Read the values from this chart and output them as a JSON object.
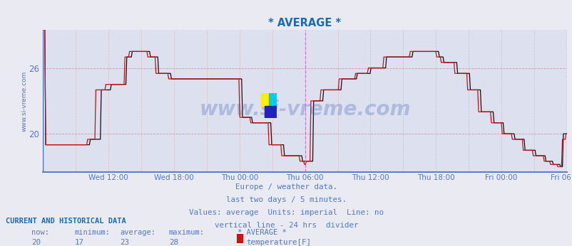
{
  "title": "* AVERAGE *",
  "title_color": "#1a6bb5",
  "bg_color": "#eaeaf2",
  "plot_bg_color": "#dde0ee",
  "line_color_red": "#cc1111",
  "line_color_black": "#111111",
  "axis_label_color": "#5577cc",
  "grid_color_minor": "#ddaaaa",
  "grid_color_major": "#cc8888",
  "ylabel_text": "www.si-vreme.com",
  "xlabel_ticks": [
    "Wed 12:00",
    "Wed 18:00",
    "Thu 00:00",
    "Thu 06:00",
    "Thu 12:00",
    "Thu 18:00",
    "Fri 00:00",
    "Fri 06:00"
  ],
  "ylim": [
    16.5,
    29.5
  ],
  "yticks": [
    20,
    26
  ],
  "footer_lines": [
    "Europe / weather data.",
    "last two days / 5 minutes.",
    "Values: average  Units: imperial  Line: no",
    "vertical line - 24 hrs  divider"
  ],
  "footer_color": "#5577cc",
  "current_label": "CURRENT AND HISTORICAL DATA",
  "stats_labels": [
    "now:",
    "minimum:",
    "average:",
    "maximum:",
    "* AVERAGE *"
  ],
  "stats_values": [
    "20",
    "17",
    "23",
    "28"
  ],
  "stats_series": "temperature[F]",
  "legend_color": "#cc1111",
  "watermark_text": "www.si-vreme.com",
  "watermark_color": "#4466bb",
  "watermark_alpha": 0.3,
  "divider_line_color": "#cc66cc",
  "num_points": 576
}
